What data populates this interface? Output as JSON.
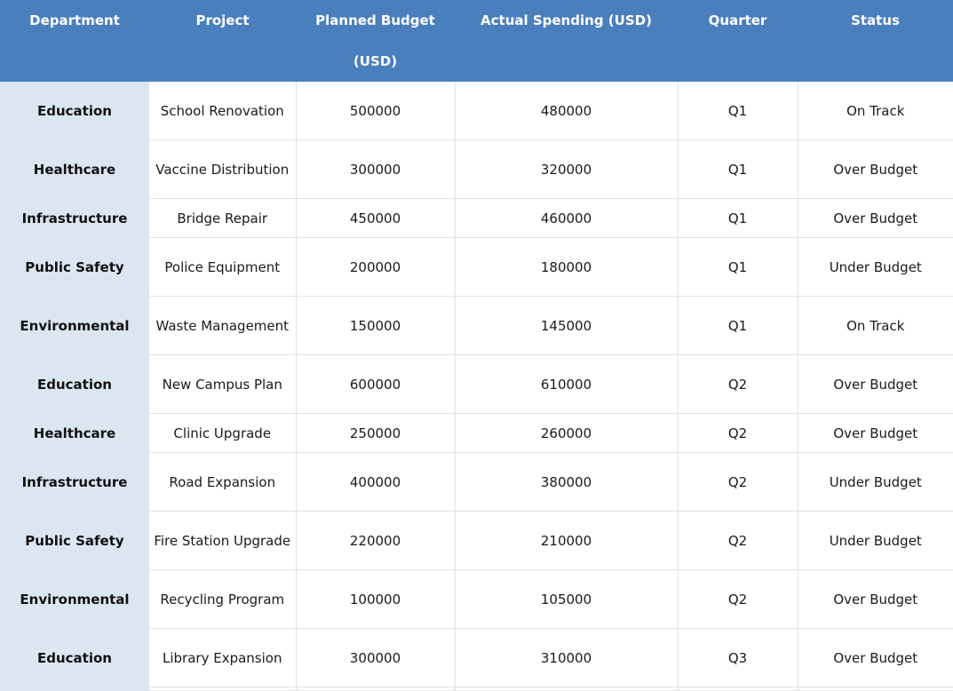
{
  "table": {
    "headers": [
      "Department",
      "Project",
      "Planned Budget (USD)",
      "Actual Spending (USD)",
      "Quarter",
      "Status"
    ],
    "rows": [
      [
        "Education",
        "School Renovation",
        "500000",
        "480000",
        "Q1",
        "On Track"
      ],
      [
        "Healthcare",
        "Vaccine Distribution",
        "300000",
        "320000",
        "Q1",
        "Over Budget"
      ],
      [
        "Infrastructure",
        "Bridge Repair",
        "450000",
        "460000",
        "Q1",
        "Over Budget"
      ],
      [
        "Public Safety",
        "Police Equipment",
        "200000",
        "180000",
        "Q1",
        "Under Budget"
      ],
      [
        "Environmental",
        "Waste Management",
        "150000",
        "145000",
        "Q1",
        "On Track"
      ],
      [
        "Education",
        "New Campus Plan",
        "600000",
        "610000",
        "Q2",
        "Over Budget"
      ],
      [
        "Healthcare",
        "Clinic Upgrade",
        "250000",
        "260000",
        "Q2",
        "Over Budget"
      ],
      [
        "Infrastructure",
        "Road Expansion",
        "400000",
        "380000",
        "Q2",
        "Under Budget"
      ],
      [
        "Public Safety",
        "Fire Station Upgrade",
        "220000",
        "210000",
        "Q2",
        "Under Budget"
      ],
      [
        "Environmental",
        "Recycling Program",
        "100000",
        "105000",
        "Q2",
        "Over Budget"
      ],
      [
        "Education",
        "Library Expansion",
        "300000",
        "310000",
        "Q3",
        "Over Budget"
      ]
    ]
  },
  "colors": {
    "header_bg": "#4a7fbe",
    "header_text": "#ffffff",
    "department_bg": "#dce6f1",
    "grid_line": "#e3e3e3"
  }
}
